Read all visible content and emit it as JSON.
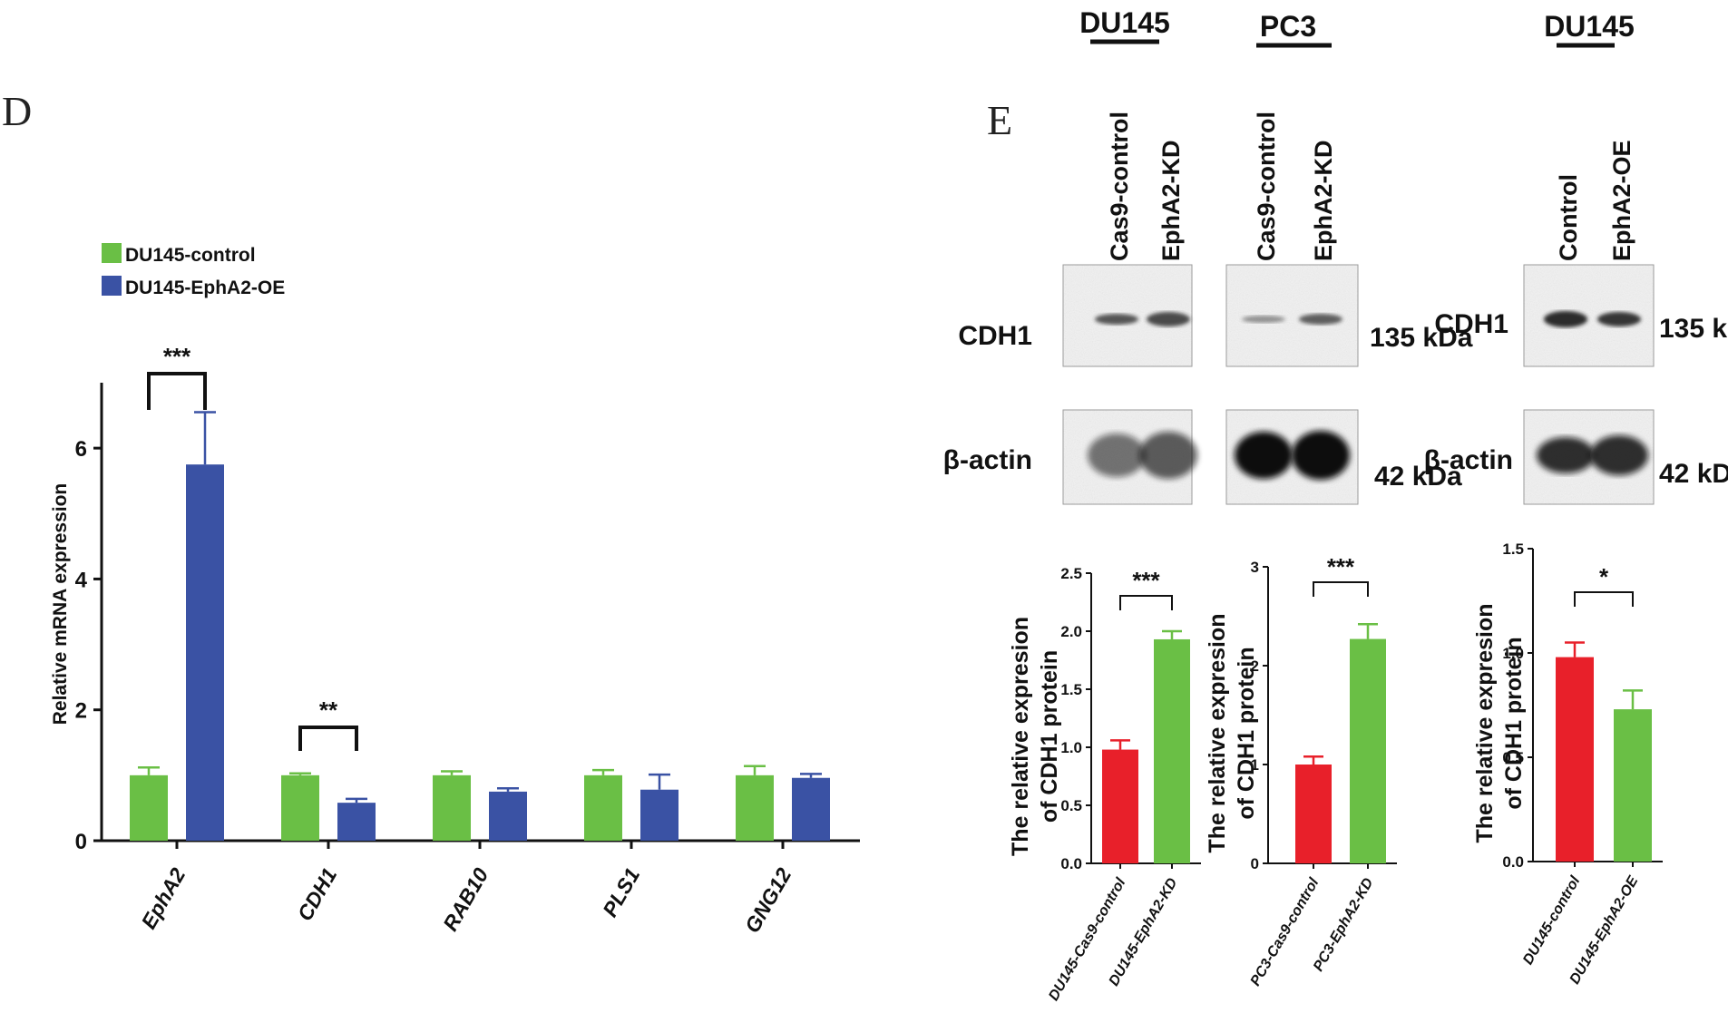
{
  "panels": {
    "D": "D",
    "E": "E"
  },
  "chart_data": [
    {
      "type": "bar",
      "panel": "D",
      "ylabel": "Relative mRNA expression",
      "ylim": [
        0,
        7
      ],
      "yticks": [
        0,
        2,
        4,
        6
      ],
      "categories": [
        "EphA2",
        "CDH1",
        "RAB10",
        "PLS1",
        "GNG12"
      ],
      "series": [
        {
          "name": "DU145-control",
          "color": "#6abf45",
          "values": [
            1.0,
            1.0,
            1.0,
            1.0,
            1.0
          ],
          "errors": [
            0.12,
            0.03,
            0.06,
            0.08,
            0.14
          ]
        },
        {
          "name": "DU145-EphA2-OE",
          "color": "#3a52a4",
          "values": [
            5.75,
            0.58,
            0.75,
            0.78,
            0.96
          ],
          "errors": [
            0.8,
            0.06,
            0.05,
            0.23,
            0.06
          ]
        }
      ],
      "significance": [
        {
          "category": "EphA2",
          "label": "***"
        },
        {
          "category": "CDH1",
          "label": "**"
        }
      ],
      "legend": "top-left"
    },
    {
      "type": "bar",
      "panel": "E",
      "ylabel": [
        "The relative expresion",
        "of CDH1 protein"
      ],
      "ylim": [
        0,
        2.5
      ],
      "yticks": [
        "0.0",
        "0.5",
        "1.0",
        "1.5",
        "2.0",
        "2.5"
      ],
      "categories": [
        "DU145-Cas9-control",
        "DU145-EphA2-KD"
      ],
      "values": [
        0.98,
        1.93
      ],
      "errors": [
        0.08,
        0.07
      ],
      "colors": [
        "#e8202a",
        "#6abf45"
      ],
      "significance": "***"
    },
    {
      "type": "bar",
      "panel": "E",
      "ylabel": [
        "The relative expresion",
        "of CDH1 protein"
      ],
      "ylim": [
        0,
        3
      ],
      "yticks": [
        "0",
        "1",
        "2",
        "3"
      ],
      "categories": [
        "PC3-Cas9-control",
        "PC3-EphA2-KD"
      ],
      "values": [
        1.0,
        2.27
      ],
      "errors": [
        0.08,
        0.15
      ],
      "colors": [
        "#e8202a",
        "#6abf45"
      ],
      "significance": "***"
    },
    {
      "type": "bar",
      "panel": "E",
      "ylabel": [
        "The relative expresion",
        "of CDH1 protein"
      ],
      "ylim": [
        0,
        1.5
      ],
      "yticks": [
        "0.0",
        "0.5",
        "1.0",
        "1.5"
      ],
      "categories": [
        "DU145-control",
        "DU145-EphA2-OE"
      ],
      "values": [
        0.98,
        0.73
      ],
      "errors": [
        0.07,
        0.09
      ],
      "colors": [
        "#e8202a",
        "#6abf45"
      ],
      "significance": "*"
    }
  ],
  "blots": [
    {
      "cell_line": "DU145",
      "lanes": [
        "Cas9-control",
        "EphA2-KD"
      ]
    },
    {
      "cell_line": "PC3",
      "lanes": [
        "Cas9-control",
        "EphA2-KD"
      ]
    },
    {
      "cell_line": "DU145",
      "lanes": [
        "Control",
        "EphA2-OE"
      ]
    }
  ],
  "blot_rows": {
    "cdh1": {
      "protein": "CDH1",
      "size": "135 kDa"
    },
    "actin": {
      "protein": "β-actin",
      "size": "42 kDa"
    }
  }
}
